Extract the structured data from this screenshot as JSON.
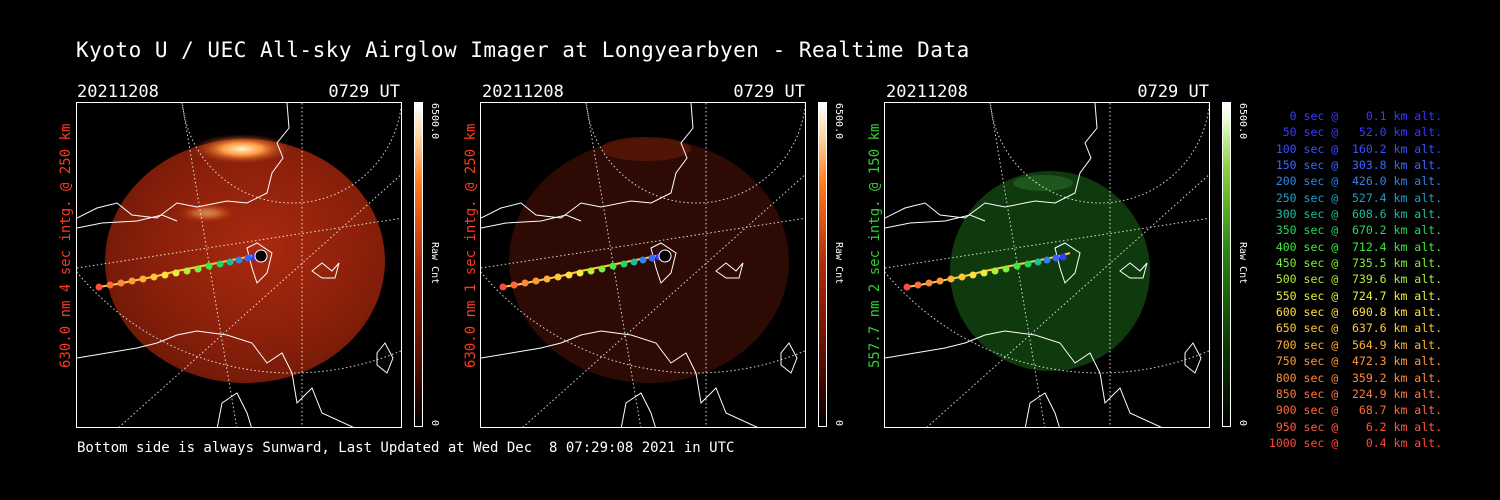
{
  "title": "Kyoto U / UEC All-sky Airglow Imager at Longyearbyen - Realtime Data",
  "panels": [
    {
      "date": "20211208",
      "time": "0729 UT",
      "ylabel": "630.0 nm 4 sec intg. @ 250 km",
      "ylabel_color": "#ff3a1a",
      "channel": "red",
      "brightness": "bright",
      "colorbar_max": "6500.0",
      "colorbar_min": "0",
      "colorbar_unit": "Raw Cnt"
    },
    {
      "date": "20211208",
      "time": "0729 UT",
      "ylabel": "630.0 nm 1 sec intg. @ 250 km",
      "ylabel_color": "#ff3a1a",
      "channel": "red",
      "brightness": "dim",
      "colorbar_max": "6500.0",
      "colorbar_min": "0",
      "colorbar_unit": "Raw Cnt"
    },
    {
      "date": "20211208",
      "time": "0729 UT",
      "ylabel": "557.7 nm 2 sec intg. @ 150 km",
      "ylabel_color": "#33cc33",
      "channel": "green",
      "brightness": "dim",
      "colorbar_max": "6500.0",
      "colorbar_min": "0",
      "colorbar_unit": "Raw Cnt"
    }
  ],
  "footer": "Bottom side is always Sunward, Last Updated at Wed Dec  8 07:29:08 2021 in UTC",
  "legend": [
    {
      "text": "   0 sec @    0.1 km alt.",
      "color": "#3a3aff"
    },
    {
      "text": "  50 sec @   52.0 km alt.",
      "color": "#3a3aff"
    },
    {
      "text": " 100 sec @  160.2 km alt.",
      "color": "#3a50ff"
    },
    {
      "text": " 150 sec @  303.8 km alt.",
      "color": "#3a66ff"
    },
    {
      "text": " 200 sec @  426.0 km alt.",
      "color": "#2f86e8"
    },
    {
      "text": " 250 sec @  527.4 km alt.",
      "color": "#1fa0c8"
    },
    {
      "text": " 300 sec @  608.6 km alt.",
      "color": "#18c0a0"
    },
    {
      "text": " 350 sec @  670.2 km alt.",
      "color": "#22d860"
    },
    {
      "text": " 400 sec @  712.4 km alt.",
      "color": "#44e83a"
    },
    {
      "text": " 450 sec @  735.5 km alt.",
      "color": "#7ef03a"
    },
    {
      "text": " 500 sec @  739.6 km alt.",
      "color": "#b0f03a"
    },
    {
      "text": " 550 sec @  724.7 km alt.",
      "color": "#e8f03a"
    },
    {
      "text": " 600 sec @  690.8 km alt.",
      "color": "#ffe040"
    },
    {
      "text": " 650 sec @  637.6 km alt.",
      "color": "#ffc83a"
    },
    {
      "text": " 700 sec @  564.9 km alt.",
      "color": "#ffb03a"
    },
    {
      "text": " 750 sec @  472.3 km alt.",
      "color": "#ff9a3a"
    },
    {
      "text": " 800 sec @  359.2 km alt.",
      "color": "#ff8a3a"
    },
    {
      "text": " 850 sec @  224.9 km alt.",
      "color": "#ff7a3a"
    },
    {
      "text": " 900 sec @   68.7 km alt.",
      "color": "#ff6a3a"
    },
    {
      "text": " 950 sec @    6.2 km alt.",
      "color": "#ff5a3a"
    },
    {
      "text": "1000 sec @    0.4 km alt.",
      "color": "#ff4a3a"
    }
  ]
}
